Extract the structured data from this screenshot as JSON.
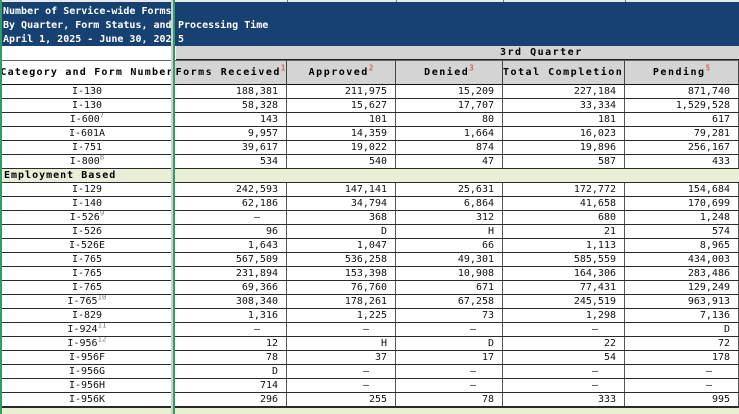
{
  "title": {
    "lines": [
      "Number of Service-wide Forms",
      "By Quarter, Form Status, and Processing Time",
      "April 1, 2025 - June 30, 2025"
    ],
    "overflow_lines": [
      "",
      "Processing Time",
      "5"
    ]
  },
  "table": {
    "quarter_header": "3rd Quarter",
    "columns": [
      {
        "label": "Category and Form Number",
        "sup": ""
      },
      {
        "label": "Forms Received",
        "sup": "1"
      },
      {
        "label": "Approved",
        "sup": "2"
      },
      {
        "label": "Denied",
        "sup": "3"
      },
      {
        "label": "Total Completions",
        "sup": "4"
      },
      {
        "label": "Pending",
        "sup": "5"
      }
    ],
    "rows": [
      {
        "type": "data",
        "form": "I-130",
        "sup": "",
        "values": [
          "188,381",
          "211,975",
          "15,209",
          "227,184",
          "871,740"
        ]
      },
      {
        "type": "data",
        "form": "I-130",
        "sup": "",
        "values": [
          "58,328",
          "15,627",
          "17,707",
          "33,334",
          "1,529,528"
        ]
      },
      {
        "type": "data",
        "form": "I-600",
        "sup": "7",
        "values": [
          "143",
          "101",
          "80",
          "181",
          "617"
        ]
      },
      {
        "type": "data",
        "form": "I-601A",
        "sup": "",
        "values": [
          "9,957",
          "14,359",
          "1,664",
          "16,023",
          "79,281"
        ]
      },
      {
        "type": "data",
        "form": "I-751",
        "sup": "",
        "values": [
          "39,617",
          "19,022",
          "874",
          "19,896",
          "256,167"
        ]
      },
      {
        "type": "data",
        "form": "I-800",
        "sup": "8",
        "values": [
          "534",
          "540",
          "47",
          "587",
          "433"
        ]
      },
      {
        "type": "section",
        "label": "Employment Based"
      },
      {
        "type": "data",
        "form": "I-129",
        "sup": "",
        "values": [
          "242,593",
          "147,141",
          "25,631",
          "172,772",
          "154,684"
        ]
      },
      {
        "type": "data",
        "form": "I-140",
        "sup": "",
        "values": [
          "62,186",
          "34,794",
          "6,864",
          "41,658",
          "170,699"
        ]
      },
      {
        "type": "data",
        "form": "I-526",
        "sup": "9",
        "values": [
          "–",
          "368",
          "312",
          "680",
          "1,248"
        ]
      },
      {
        "type": "data",
        "form": "I-526",
        "sup": "",
        "values": [
          "96",
          "D",
          "H",
          "21",
          "574"
        ]
      },
      {
        "type": "data",
        "form": "I-526E",
        "sup": "",
        "values": [
          "1,643",
          "1,047",
          "66",
          "1,113",
          "8,965"
        ]
      },
      {
        "type": "data",
        "form": "I-765",
        "sup": "",
        "values": [
          "567,509",
          "536,258",
          "49,301",
          "585,559",
          "434,003"
        ]
      },
      {
        "type": "data",
        "form": "I-765",
        "sup": "",
        "values": [
          "231,894",
          "153,398",
          "10,908",
          "164,306",
          "283,486"
        ]
      },
      {
        "type": "data",
        "form": "I-765",
        "sup": "",
        "values": [
          "69,366",
          "76,760",
          "671",
          "77,431",
          "129,249"
        ]
      },
      {
        "type": "data",
        "form": "I-765",
        "sup": "10",
        "values": [
          "308,340",
          "178,261",
          "67,258",
          "245,519",
          "963,913"
        ]
      },
      {
        "type": "data",
        "form": "I-829",
        "sup": "",
        "values": [
          "1,316",
          "1,225",
          "73",
          "1,298",
          "7,136"
        ]
      },
      {
        "type": "data",
        "form": "I-924",
        "sup": "11",
        "values": [
          "–",
          "–",
          "–",
          "–",
          "D"
        ]
      },
      {
        "type": "data",
        "form": "I-956",
        "sup": "12",
        "values": [
          "12",
          "H",
          "D",
          "22",
          "72"
        ]
      },
      {
        "type": "data",
        "form": "I-956F",
        "sup": "",
        "values": [
          "78",
          "37",
          "17",
          "54",
          "178"
        ]
      },
      {
        "type": "data",
        "form": "I-956G",
        "sup": "",
        "values": [
          "D",
          "–",
          "–",
          "–",
          "–"
        ]
      },
      {
        "type": "data",
        "form": "I-956H",
        "sup": "",
        "values": [
          "714",
          "–",
          "–",
          "–",
          "–"
        ]
      },
      {
        "type": "data",
        "form": "I-956K",
        "sup": "",
        "values": [
          "296",
          "255",
          "78",
          "333",
          "995"
        ]
      }
    ]
  },
  "colors": {
    "banner_navy": "#174170",
    "header_gray": "#d4d4d4",
    "section_green": "#e9efd6",
    "freeze_line_green": "#2f9e63",
    "footnote_red": "#c46a6a"
  }
}
